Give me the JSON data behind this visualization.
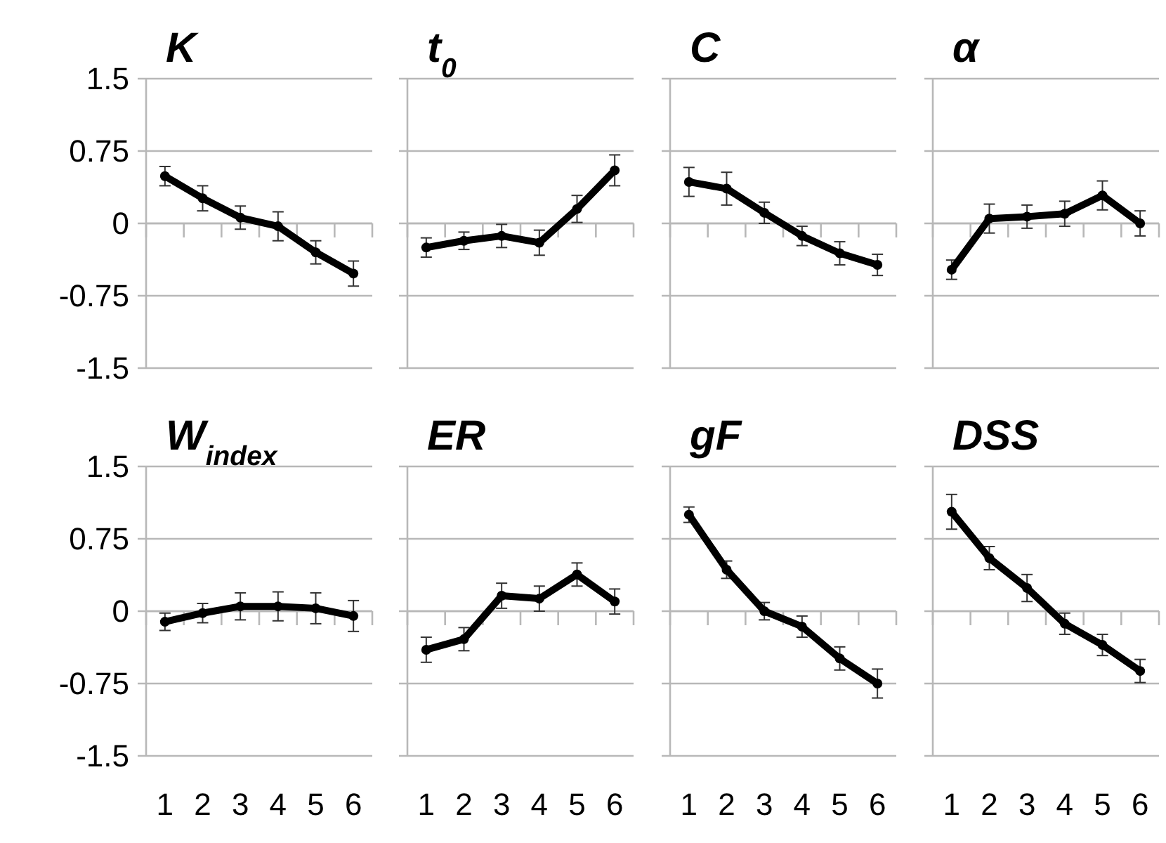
{
  "chart_data": [
    {
      "type": "line",
      "title": "K",
      "categories": [
        "1",
        "2",
        "3",
        "4",
        "5",
        "6"
      ],
      "values": [
        0.49,
        0.26,
        0.06,
        -0.03,
        -0.3,
        -0.52
      ],
      "errors": [
        0.1,
        0.13,
        0.12,
        0.15,
        0.12,
        0.13
      ],
      "color": "#000000",
      "ylim": [
        -1.5,
        1.5
      ],
      "yticks": [
        -1.5,
        -0.75,
        0,
        0.75,
        1.5
      ],
      "grid": "y",
      "marker": "circle",
      "tick_labels": "y"
    },
    {
      "type": "line",
      "title": "t$_{0}$",
      "categories": [
        "1",
        "2",
        "3",
        "4",
        "5",
        "6"
      ],
      "values": [
        -0.25,
        -0.18,
        -0.13,
        -0.2,
        0.15,
        0.55
      ],
      "errors": [
        0.1,
        0.09,
        0.12,
        0.13,
        0.14,
        0.16
      ],
      "color": "#000000",
      "ylim": [
        -1.5,
        1.5
      ],
      "yticks": [
        -1.5,
        -0.75,
        0,
        0.75,
        1.5
      ],
      "grid": "y",
      "marker": "circle",
      "tick_labels": false
    },
    {
      "type": "line",
      "title": "C",
      "categories": [
        "1",
        "2",
        "3",
        "4",
        "5",
        "6"
      ],
      "values": [
        0.43,
        0.36,
        0.11,
        -0.13,
        -0.31,
        -0.43
      ],
      "errors": [
        0.15,
        0.17,
        0.11,
        0.1,
        0.12,
        0.11
      ],
      "color": "#000000",
      "ylim": [
        -1.5,
        1.5
      ],
      "yticks": [
        -1.5,
        -0.75,
        0,
        0.75,
        1.5
      ],
      "grid": "y",
      "marker": "circle",
      "tick_labels": false
    },
    {
      "type": "line",
      "title": "α",
      "categories": [
        "1",
        "2",
        "3",
        "4",
        "5",
        "6"
      ],
      "values": [
        -0.48,
        0.05,
        0.07,
        0.1,
        0.29,
        0
      ],
      "errors": [
        0.1,
        0.15,
        0.12,
        0.13,
        0.15,
        0.13
      ],
      "color": "#000000",
      "ylim": [
        -1.5,
        1.5
      ],
      "yticks": [
        -1.5,
        -0.75,
        0,
        0.75,
        1.5
      ],
      "grid": "y",
      "marker": "circle",
      "tick_labels": false
    },
    {
      "type": "line",
      "title": "W$_{index}$",
      "categories": [
        "1",
        "2",
        "3",
        "4",
        "5",
        "6"
      ],
      "values": [
        -0.11,
        -0.02,
        0.05,
        0.05,
        0.03,
        -0.05
      ],
      "errors": [
        0.09,
        0.1,
        0.14,
        0.15,
        0.16,
        0.16
      ],
      "color": "#000000",
      "ylim": [
        -1.5,
        1.5
      ],
      "yticks": [
        -1.5,
        -0.75,
        0,
        0.75,
        1.5
      ],
      "grid": "y",
      "marker": "circle"
    },
    {
      "type": "line",
      "title": "ER",
      "categories": [
        "1",
        "2",
        "3",
        "4",
        "5",
        "6"
      ],
      "values": [
        -0.4,
        -0.29,
        0.16,
        0.13,
        0.38,
        0.1
      ],
      "errors": [
        0.13,
        0.12,
        0.13,
        0.13,
        0.12,
        0.13
      ],
      "color": "#000000",
      "ylim": [
        -1.5,
        1.5
      ],
      "yticks": [
        -1.5,
        -0.75,
        0,
        0.75,
        1.5
      ],
      "grid": "y",
      "marker": "circle",
      "tick_labels": "x"
    },
    {
      "type": "line",
      "title": "gF",
      "categories": [
        "1",
        "2",
        "3",
        "4",
        "5",
        "6"
      ],
      "values": [
        1,
        0.43,
        0,
        -0.16,
        -0.49,
        -0.75
      ],
      "errors": [
        0.08,
        0.09,
        0.09,
        0.11,
        0.12,
        0.15
      ],
      "color": "#000000",
      "ylim": [
        -1.5,
        1.5
      ],
      "yticks": [
        -1.5,
        -0.75,
        0,
        0.75,
        1.5
      ],
      "grid": "y",
      "marker": "circle",
      "tick_labels": "x"
    },
    {
      "type": "line",
      "title": "DSS",
      "categories": [
        "1",
        "2",
        "3",
        "4",
        "5",
        "6"
      ],
      "values": [
        1.03,
        0.55,
        0.24,
        -0.13,
        -0.35,
        -0.62
      ],
      "errors": [
        0.18,
        0.12,
        0.14,
        0.11,
        0.11,
        0.12
      ],
      "color": "#000000",
      "ylim": [
        -1.5,
        1.5
      ],
      "yticks": [
        -1.5,
        -0.75,
        0,
        0.75,
        1.5
      ],
      "grid": "y",
      "marker": "circle",
      "tick_labels": "x"
    }
  ]
}
